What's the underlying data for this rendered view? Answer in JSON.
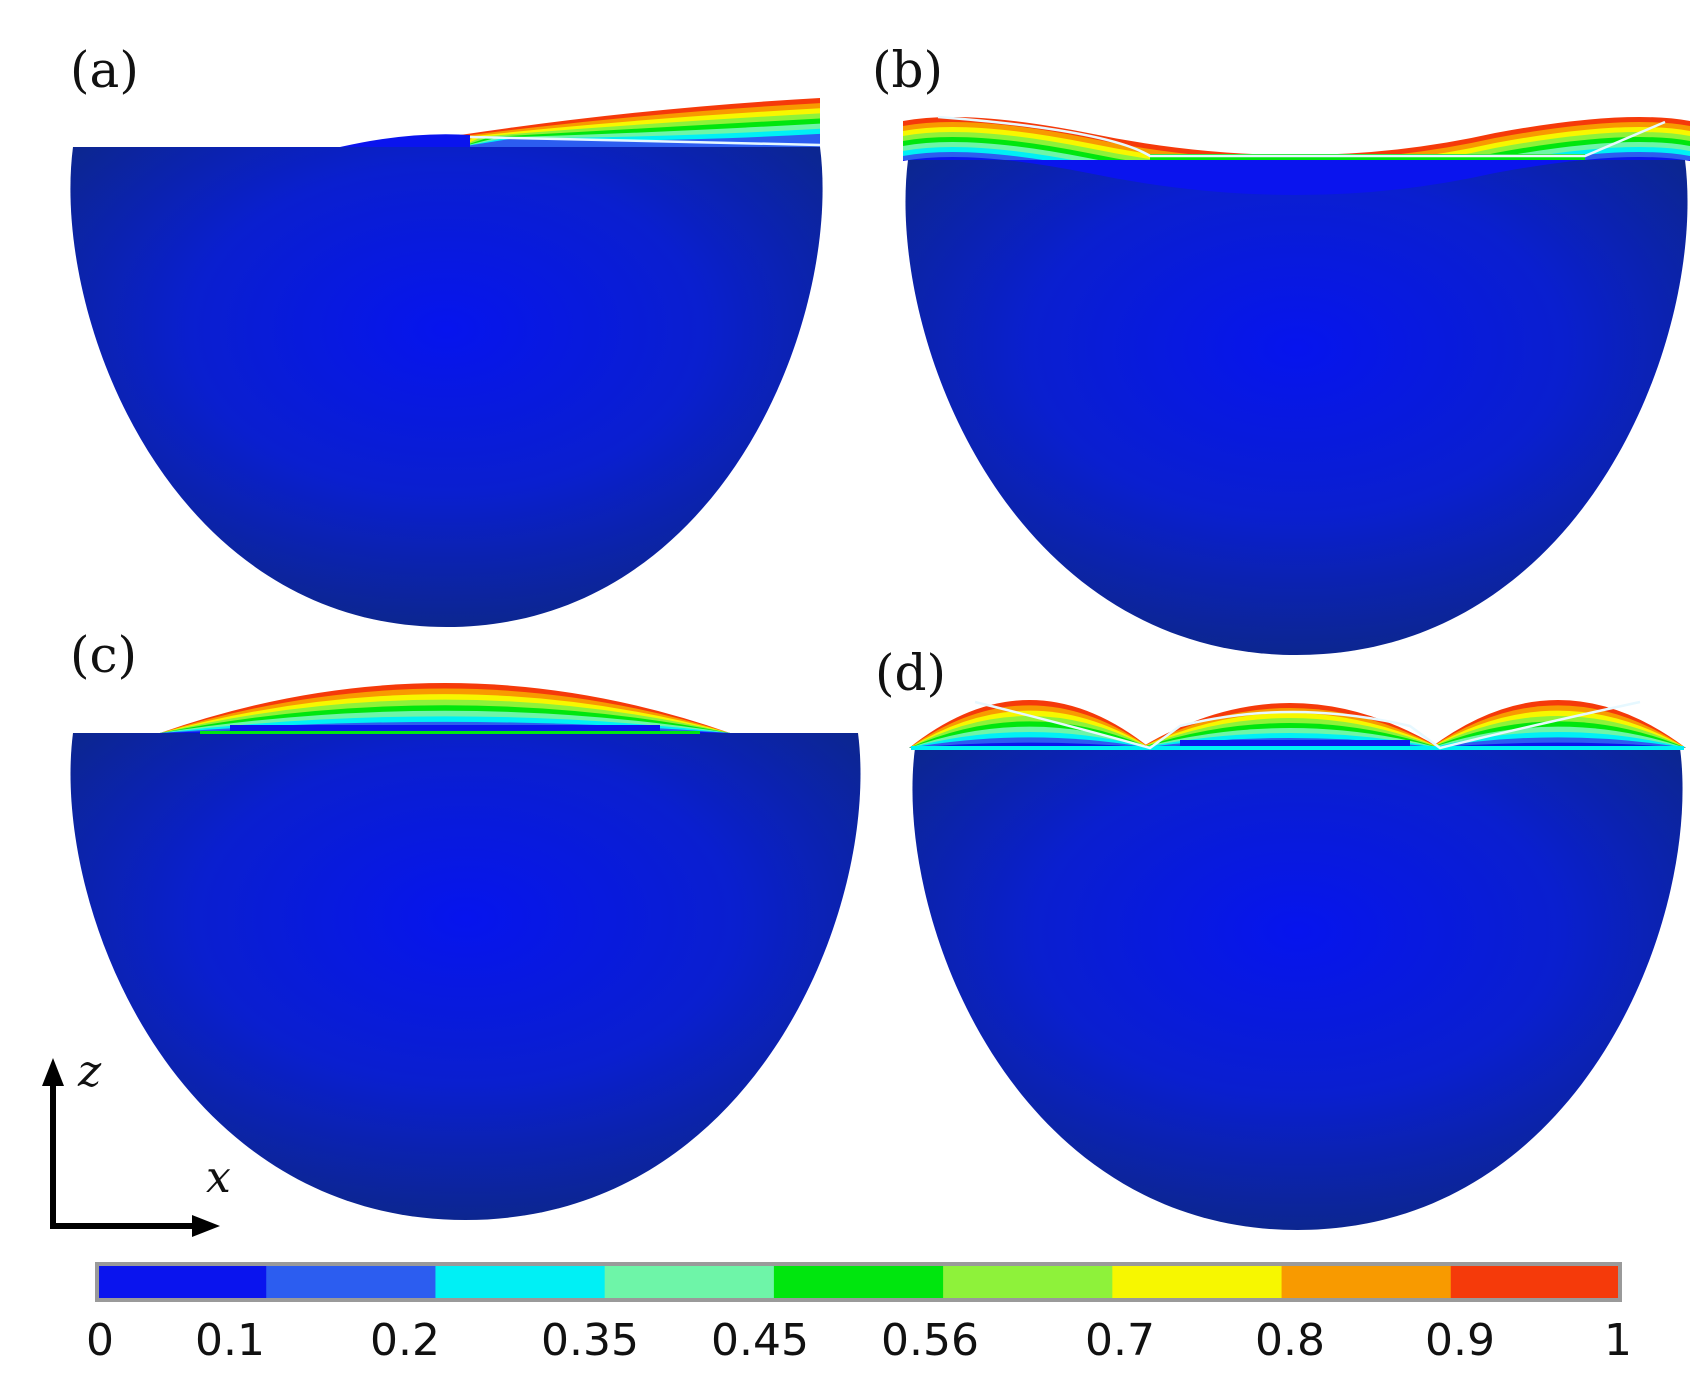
{
  "panels": [
    {
      "label": "(a)",
      "mode": "one-wave"
    },
    {
      "label": "(b)",
      "mode": "two-peaks"
    },
    {
      "label": "(c)",
      "mode": "center-bump"
    },
    {
      "label": "(d)",
      "mode": "three-bumps"
    }
  ],
  "axes": {
    "z_label": "z",
    "x_label": "x"
  },
  "colorbar": {
    "ticks": [
      "0",
      "0.1",
      "0.2",
      "0.35",
      "0.45",
      "0.56",
      "0.7",
      "0.8",
      "0.9",
      "1"
    ],
    "colors": [
      "#0a14ee",
      "#2c5df0",
      "#00f0f5",
      "#6ef5a8",
      "#00e60e",
      "#8ef23a",
      "#f7f700",
      "#f89a00",
      "#f53a0a"
    ],
    "border_color": "#9a9a9a"
  },
  "colors": {
    "shell_dark": "#0c2690",
    "shell_light": "#0614ee",
    "rim_line": "#e6f8ff"
  }
}
